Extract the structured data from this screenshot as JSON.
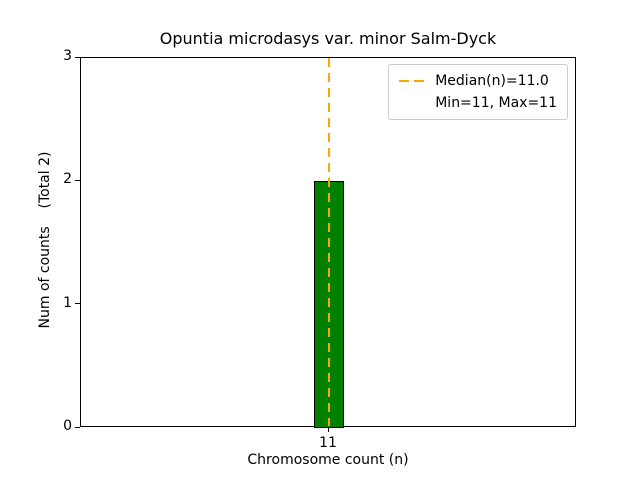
{
  "chart_data": {
    "type": "bar",
    "title": "Opuntia microdasys var. minor Salm-Dyck",
    "xlabel": "Chromosome count (n)",
    "ylabel": "Num of counts    (Total 2)",
    "categories": [
      "11"
    ],
    "values": [
      2
    ],
    "ylim": [
      0,
      3
    ],
    "yticks": [
      0,
      1,
      2,
      3
    ],
    "grid": false,
    "bar_color": "#008000",
    "bar_edge_color": "#000000",
    "median_line": {
      "x": "11",
      "value": 11.0,
      "color": "#ffa500",
      "style": "dashed"
    },
    "legend": {
      "position": "upper right",
      "entries": [
        {
          "sample": "dashed-orange-line",
          "label": "Median(n)=11.0"
        },
        {
          "sample": "none",
          "label": "Min=11, Max=11"
        }
      ]
    }
  }
}
